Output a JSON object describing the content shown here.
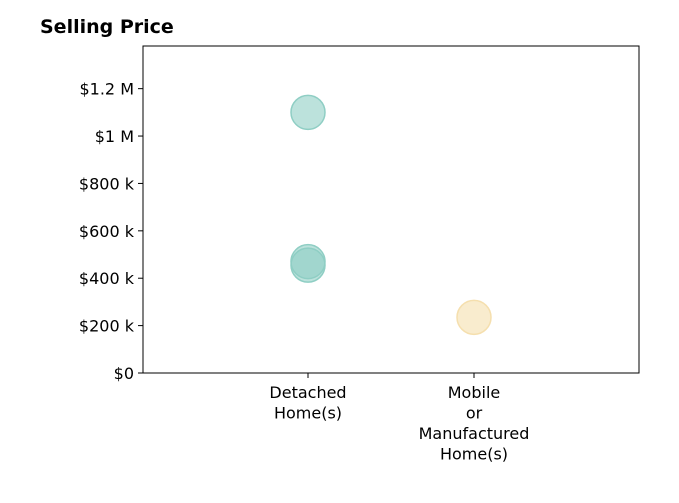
{
  "chart_data": {
    "type": "scatter",
    "title": "Selling Price",
    "xlabel": "",
    "ylabel": "",
    "categories": [
      [
        "Detached",
        "Home(s)"
      ],
      [
        "Mobile",
        "or",
        "Manufactured",
        "Home(s)"
      ]
    ],
    "ylim": [
      0,
      1380000
    ],
    "y_ticks": [
      {
        "value": 0,
        "label": "$0"
      },
      {
        "value": 200000,
        "label": "$200 k"
      },
      {
        "value": 400000,
        "label": "$400 k"
      },
      {
        "value": 600000,
        "label": "$600 k"
      },
      {
        "value": 800000,
        "label": "$800 k"
      },
      {
        "value": 1000000,
        "label": "$1 M"
      },
      {
        "value": 1200000,
        "label": "$1.2 M"
      }
    ],
    "grid": false,
    "points": [
      {
        "category": 0,
        "y": 1100000,
        "color": "#8fcec4"
      },
      {
        "category": 0,
        "y": 470000,
        "color": "#8fcec4"
      },
      {
        "category": 0,
        "y": 455000,
        "color": "#8fcec4"
      },
      {
        "category": 1,
        "y": 235000,
        "color": "#f5dfae"
      }
    ]
  }
}
